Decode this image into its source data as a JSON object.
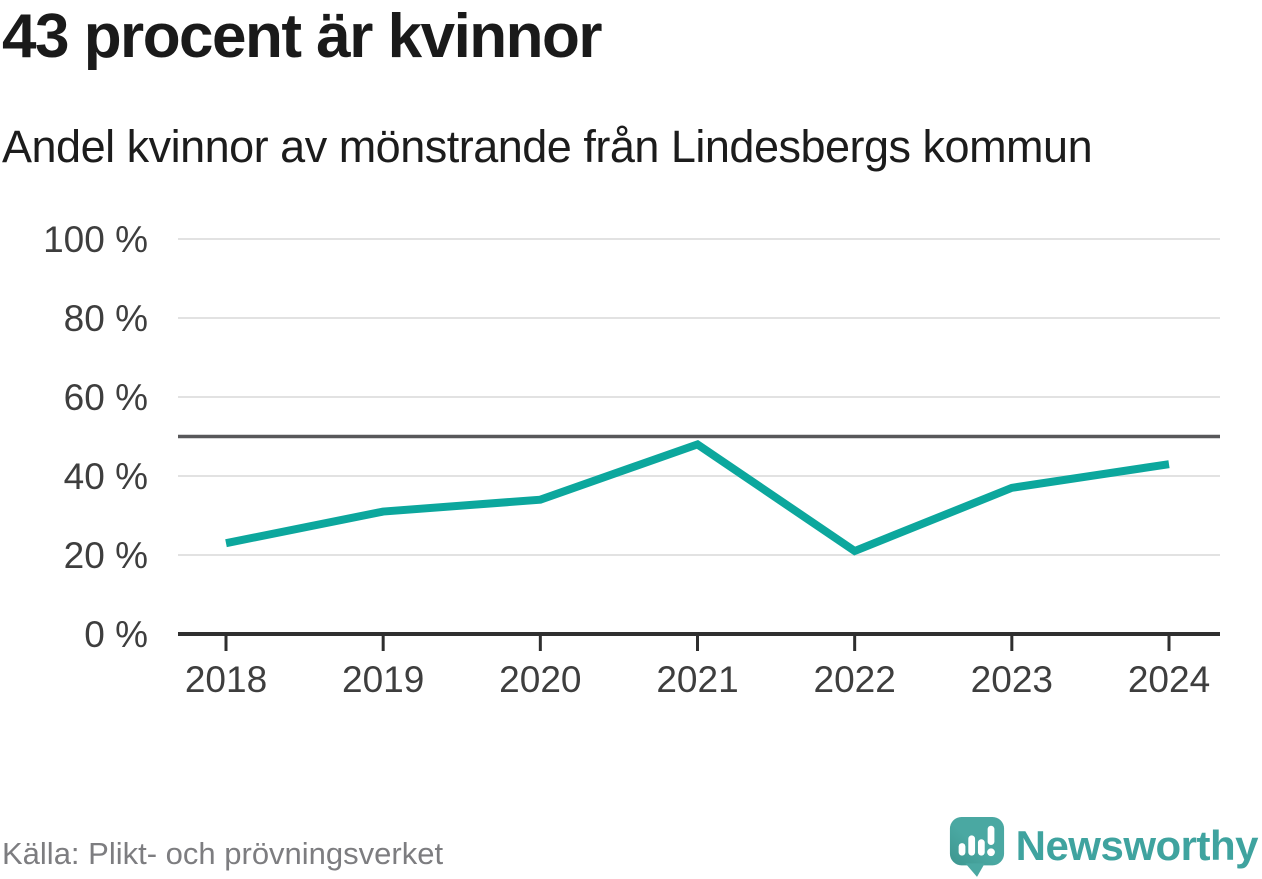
{
  "header": {
    "title": "43 procent är kvinnor",
    "subtitle": "Andel kvinnor av mönstrande från Lindesbergs kommun"
  },
  "chart_data": {
    "type": "line",
    "title": "43 procent är kvinnor",
    "subtitle": "Andel kvinnor av mönstrande från Lindesbergs kommun",
    "x": [
      "2018",
      "2019",
      "2020",
      "2021",
      "2022",
      "2023",
      "2024"
    ],
    "series": [
      {
        "name": "Andel kvinnor av mönstrande",
        "values": [
          23,
          31,
          34,
          48,
          21,
          37,
          43
        ]
      }
    ],
    "ylim": [
      0,
      100
    ],
    "yticks": [
      0,
      20,
      40,
      60,
      80,
      100
    ],
    "ytick_label_suffix": " %",
    "reference_line_y": 50,
    "grid": true,
    "legend_position": "none",
    "colors": {
      "line": "#0ca79d",
      "grid": "#e2e2e2",
      "reference": "#58585a",
      "axis": "#2f2f2f",
      "tick_text": "#3e3e3e"
    }
  },
  "footer": {
    "source": "Källa: Plikt- och prövningsverket",
    "brand": "Newsworthy",
    "brand_color": "#3fa39f",
    "logo_bubble_color": "#4aa8a2"
  }
}
